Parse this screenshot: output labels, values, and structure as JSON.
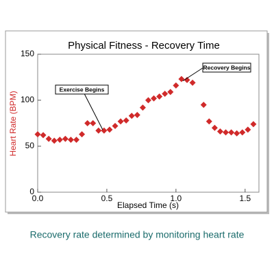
{
  "chart_data": {
    "type": "scatter",
    "title": "Physical Fitness - Recovery Time",
    "x_label": "Elapsed Time (s)",
    "y_label": "Heart Rate (BPM)",
    "x": [
      0.0,
      0.04,
      0.08,
      0.12,
      0.16,
      0.2,
      0.24,
      0.28,
      0.32,
      0.36,
      0.4,
      0.44,
      0.48,
      0.52,
      0.56,
      0.6,
      0.64,
      0.68,
      0.72,
      0.76,
      0.8,
      0.84,
      0.88,
      0.92,
      0.96,
      1.0,
      1.04,
      1.08,
      1.12,
      1.2,
      1.24,
      1.28,
      1.32,
      1.36,
      1.4,
      1.44,
      1.48,
      1.52,
      1.56
    ],
    "values": [
      63,
      62,
      58,
      56,
      57,
      58,
      57,
      57,
      63,
      75,
      75,
      67,
      67,
      68,
      72,
      77,
      78,
      83,
      84,
      92,
      100,
      102,
      104,
      107,
      109,
      116,
      123,
      122,
      119,
      95,
      77,
      70,
      66,
      65,
      65,
      64,
      65,
      68,
      74
    ],
    "color": "#d02a2a",
    "xlim": [
      0,
      1.6
    ],
    "ylim": [
      0,
      150
    ],
    "xticks": [
      {
        "value": 0,
        "label": "0.0"
      },
      {
        "value": 0.5,
        "label": "0.5"
      },
      {
        "value": 1,
        "label": "1.0"
      },
      {
        "value": 1.5,
        "label": "1.5"
      }
    ],
    "yticks": [
      0,
      50,
      100,
      150
    ],
    "annotations": [
      {
        "text": "Exercise Begins",
        "x": 0.47,
        "y": 68
      },
      {
        "text": "Recovery Begins",
        "x": 1.05,
        "y": 121
      }
    ]
  },
  "caption": "Recovery rate determined by monitoring heart rate"
}
